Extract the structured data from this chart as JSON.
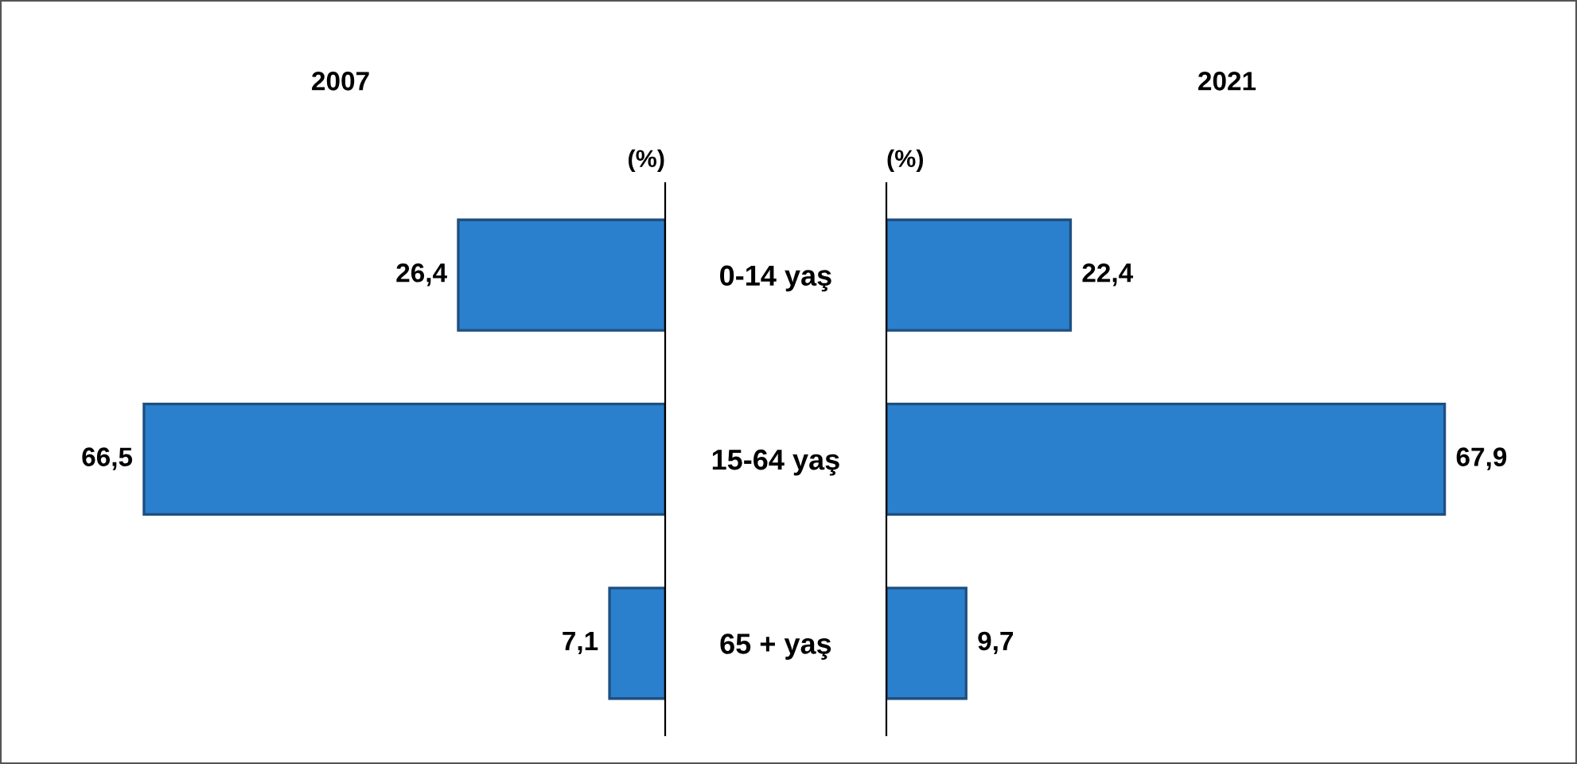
{
  "chart_data": [
    {
      "type": "bar",
      "orientation": "horizontal",
      "title": "2007",
      "xlabel": "(%)",
      "categories": [
        "0-14 yaş",
        "15-64 yaş",
        "65 + yaş"
      ],
      "values": [
        26.4,
        66.5,
        7.1
      ],
      "value_labels": [
        "26,4",
        "66,5",
        "7,1"
      ],
      "color": "#2a80cc",
      "tick_labels": "y",
      "grid": false,
      "legend": false
    },
    {
      "type": "bar",
      "orientation": "horizontal",
      "title": "2021",
      "xlabel": "(%)",
      "categories": [
        null,
        null,
        null
      ],
      "values": [
        22.4,
        67.9,
        9.7
      ],
      "value_labels": [
        "22,4",
        "67,9",
        "9,7"
      ],
      "color": "#2a80cc",
      "tick_labels": false,
      "grid": false,
      "legend": false
    }
  ]
}
